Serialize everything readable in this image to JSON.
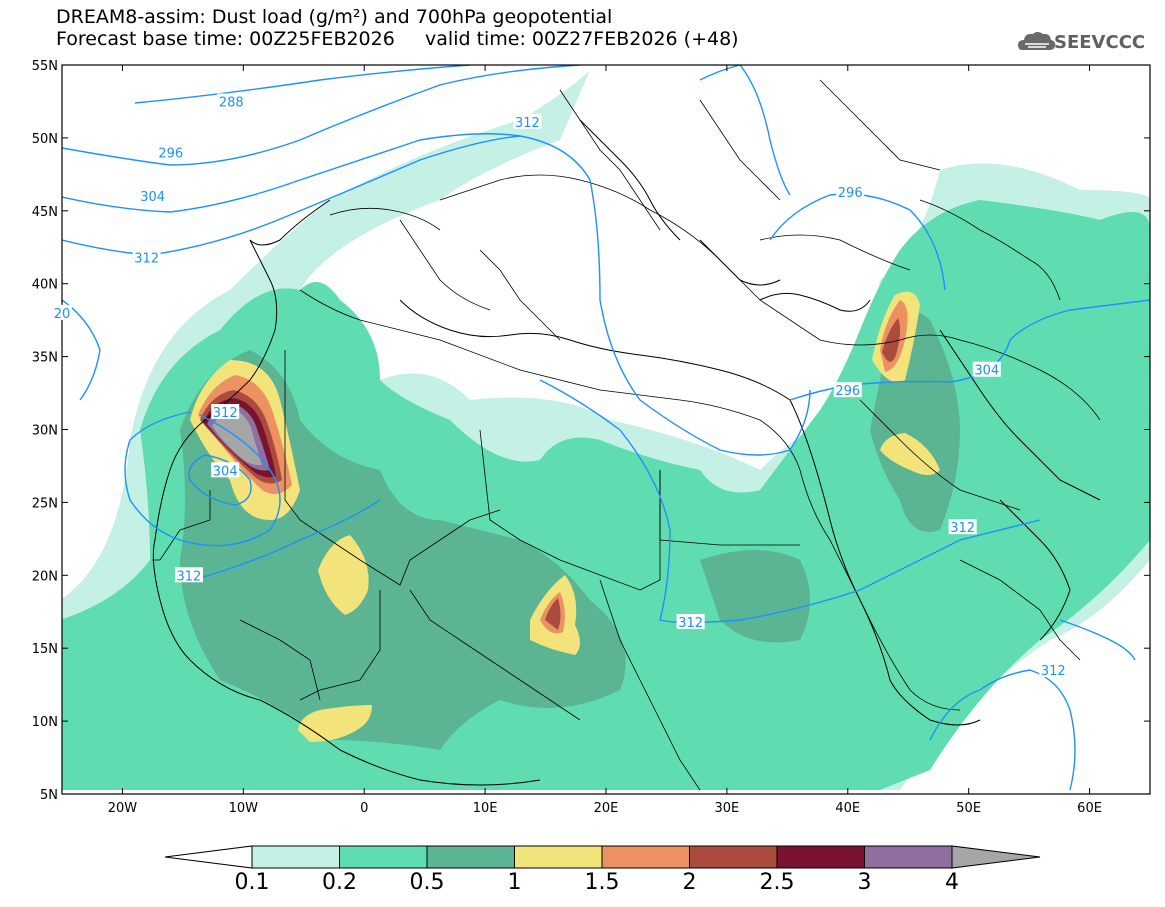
{
  "title": {
    "line1": "DREAM8-assim: Dust load (g/m²) and 700hPa geopotential",
    "line2": "Forecast base time: 00Z25FEB2026     valid time: 00Z27FEB2026 (+48)"
  },
  "logo": {
    "text": "SEEVCCC",
    "icon": "cloud-icon"
  },
  "axes": {
    "lon_labels": [
      "20W",
      "10W",
      "0",
      "10E",
      "20E",
      "30E",
      "40E",
      "50E",
      "60E"
    ],
    "lon_values": [
      -20,
      -10,
      0,
      10,
      20,
      30,
      40,
      50,
      60
    ],
    "lat_labels": [
      "5N",
      "10N",
      "15N",
      "20N",
      "25N",
      "30N",
      "35N",
      "40N",
      "45N",
      "50N",
      "55N"
    ],
    "lat_values": [
      5,
      10,
      15,
      20,
      25,
      30,
      35,
      40,
      45,
      50,
      55
    ],
    "lon_range": [
      -25,
      65
    ],
    "lat_range": [
      5,
      55
    ]
  },
  "contour_labels": [
    {
      "text": "288",
      "lon": -11,
      "lat": 52.5
    },
    {
      "text": "296",
      "lon": -16,
      "lat": 49
    },
    {
      "text": "304",
      "lon": -17.5,
      "lat": 46
    },
    {
      "text": "312",
      "lon": -18,
      "lat": 41.8
    },
    {
      "text": "20",
      "lon": -25,
      "lat": 38
    },
    {
      "text": "312",
      "lon": -11.5,
      "lat": 31.2
    },
    {
      "text": "304",
      "lon": -11.5,
      "lat": 27.2
    },
    {
      "text": "312",
      "lon": -14.5,
      "lat": 20
    },
    {
      "text": "312",
      "lon": 13.5,
      "lat": 51.1
    },
    {
      "text": "296",
      "lon": 40.2,
      "lat": 46.3
    },
    {
      "text": "296",
      "lon": 40,
      "lat": 32.7
    },
    {
      "text": "304",
      "lon": 51.5,
      "lat": 34.1
    },
    {
      "text": "312",
      "lon": 49.5,
      "lat": 23.3
    },
    {
      "text": "312",
      "lon": 27,
      "lat": 16.8
    },
    {
      "text": "312",
      "lon": 57,
      "lat": 13.5
    }
  ],
  "colorbar": {
    "labels": [
      "0.1",
      "0.2",
      "0.5",
      "1",
      "1.5",
      "2",
      "2.5",
      "3",
      "4"
    ],
    "colors": [
      "#c5f0e6",
      "#5fddb1",
      "#5bb592",
      "#f2e47a",
      "#ec9262",
      "#aa4b3e",
      "#7a1330",
      "#8f6ea0",
      "#a6a6a6"
    ]
  },
  "colors": {
    "contour": "#1e90ff",
    "border": "#000000"
  }
}
